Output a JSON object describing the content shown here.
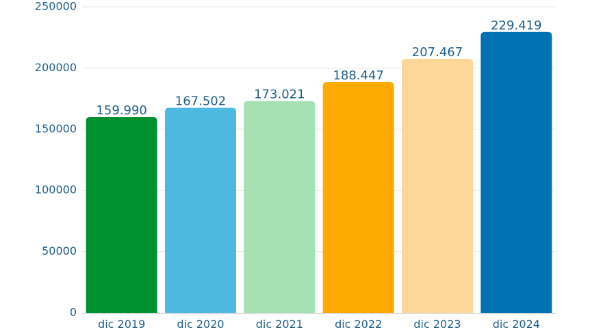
{
  "chart_data": {
    "type": "bar",
    "categories": [
      "dic 2019",
      "dic 2020",
      "dic 2021",
      "dic 2022",
      "dic 2023",
      "dic 2024"
    ],
    "values": [
      159990,
      167502,
      173021,
      188447,
      207467,
      229419
    ],
    "data_labels": [
      "159.990",
      "167.502",
      "173.021",
      "188.447",
      "207.467",
      "229.419"
    ],
    "colors": [
      "#00912f",
      "#4db9e0",
      "#a6e1b4",
      "#ffaa00",
      "#fdd797",
      "#0071b3"
    ],
    "yticks": [
      0,
      50000,
      100000,
      150000,
      200000,
      250000
    ],
    "ytick_labels": [
      "0",
      "50000",
      "100000",
      "150000",
      "200000",
      "250000"
    ],
    "ylim": [
      0,
      250000
    ],
    "grid": true,
    "legend": "none",
    "title": "",
    "xlabel": "",
    "ylabel": ""
  }
}
